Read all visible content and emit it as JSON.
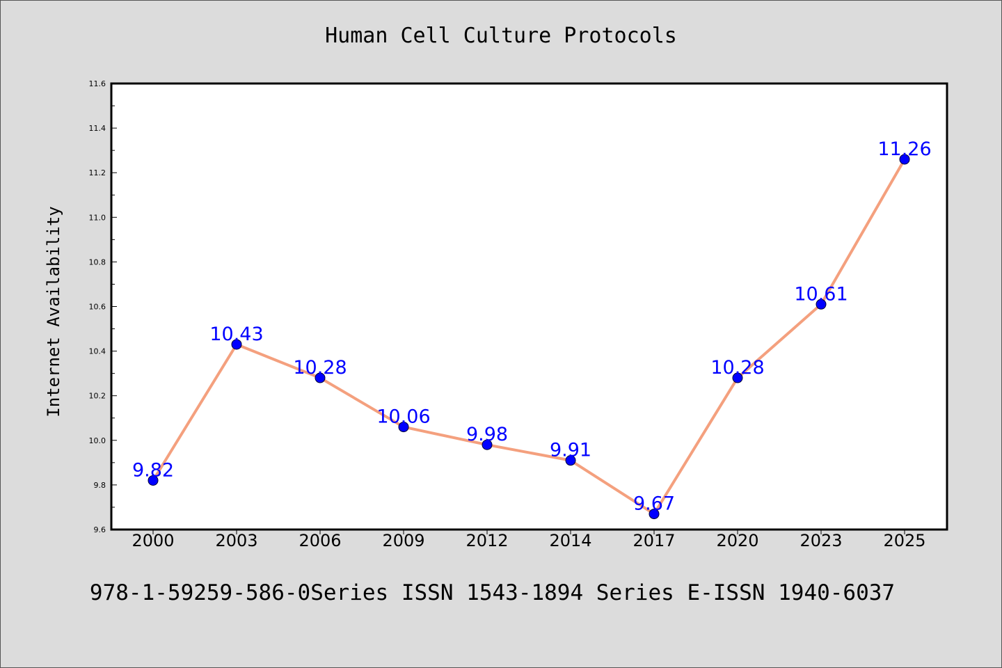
{
  "chart_data": {
    "type": "line",
    "title": "Human Cell Culture Protocols",
    "xlabel": "",
    "ylabel": "Internet Availability",
    "categories": [
      "2000",
      "2003",
      "2006",
      "2009",
      "2012",
      "2014",
      "2017",
      "2020",
      "2023",
      "2025"
    ],
    "series": [
      {
        "values": [
          9.82,
          10.43,
          10.28,
          10.06,
          9.98,
          9.91,
          9.67,
          10.28,
          10.61,
          11.26
        ],
        "labels": [
          "9.82",
          "10.43",
          "10.28",
          "10.06",
          "9.98",
          "9.91",
          "9.67",
          "10.28",
          "10.61",
          "11.26"
        ],
        "line_color": "#f4a07e",
        "marker_color": "#0000ff",
        "label_color": "#0000ff"
      }
    ],
    "ylim": [
      9.6,
      11.6
    ],
    "yticks": [
      "9.6",
      "9.8",
      "10.0",
      "10.2",
      "10.4",
      "10.6",
      "10.8",
      "11.0",
      "11.2",
      "11.4",
      "11.6"
    ],
    "grid": false,
    "legend": "none"
  },
  "footer": {
    "text": "978-1-59259-586-0Series ISSN 1543-1894 Series E-ISSN 1940-6037"
  }
}
